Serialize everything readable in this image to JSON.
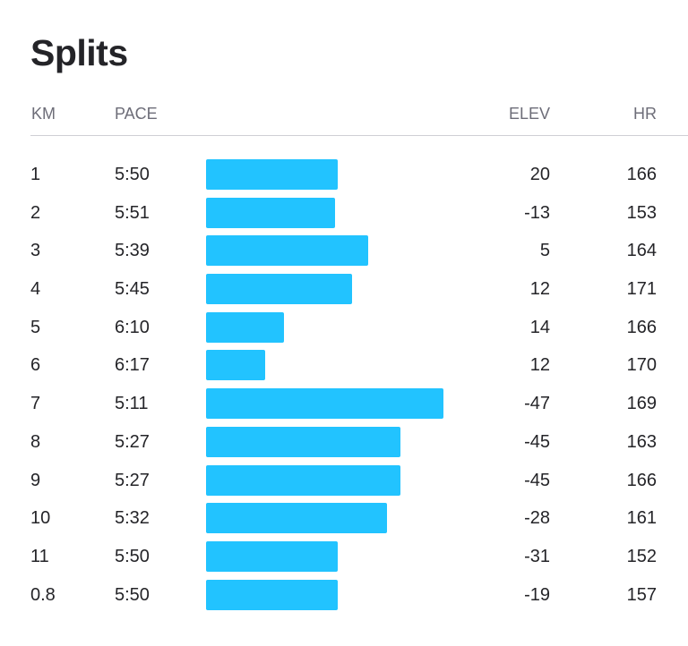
{
  "title": "Splits",
  "columns": {
    "km": "KM",
    "pace": "PACE",
    "elev": "ELEV",
    "hr": "HR"
  },
  "colors": {
    "bar": "#22c3ff"
  },
  "bar_scale": {
    "fastest_pace_seconds": 311,
    "slowest_pace_seconds": 377
  },
  "splits": [
    {
      "km": "1",
      "pace": "5:50",
      "pace_seconds": 350,
      "elev": "20",
      "hr": "166"
    },
    {
      "km": "2",
      "pace": "5:51",
      "pace_seconds": 351,
      "elev": "-13",
      "hr": "153"
    },
    {
      "km": "3",
      "pace": "5:39",
      "pace_seconds": 339,
      "elev": "5",
      "hr": "164"
    },
    {
      "km": "4",
      "pace": "5:45",
      "pace_seconds": 345,
      "elev": "12",
      "hr": "171"
    },
    {
      "km": "5",
      "pace": "6:10",
      "pace_seconds": 370,
      "elev": "14",
      "hr": "166"
    },
    {
      "km": "6",
      "pace": "6:17",
      "pace_seconds": 377,
      "elev": "12",
      "hr": "170"
    },
    {
      "km": "7",
      "pace": "5:11",
      "pace_seconds": 311,
      "elev": "-47",
      "hr": "169"
    },
    {
      "km": "8",
      "pace": "5:27",
      "pace_seconds": 327,
      "elev": "-45",
      "hr": "163"
    },
    {
      "km": "9",
      "pace": "5:27",
      "pace_seconds": 327,
      "elev": "-45",
      "hr": "166"
    },
    {
      "km": "10",
      "pace": "5:32",
      "pace_seconds": 332,
      "elev": "-28",
      "hr": "161"
    },
    {
      "km": "11",
      "pace": "5:50",
      "pace_seconds": 350,
      "elev": "-31",
      "hr": "152"
    },
    {
      "km": "0.8",
      "pace": "5:50",
      "pace_seconds": 350,
      "elev": "-19",
      "hr": "157"
    }
  ]
}
